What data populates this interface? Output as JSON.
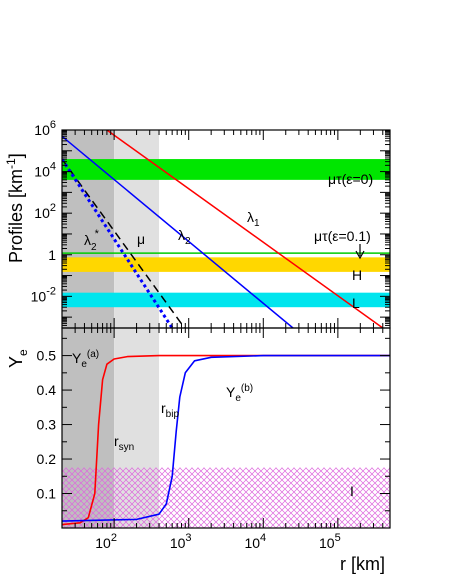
{
  "chart_data": [
    {
      "type": "line",
      "ylabel_main": "Profiles [km",
      "ylabel_sup": "-1",
      "ylabel_end": "]",
      "x_scale": "log",
      "y_scale": "log",
      "xlim": [
        20,
        500000
      ],
      "ylim": [
        0.0003,
        1000000
      ],
      "x_tick_labels": [
        {
          "base": "10",
          "exp": "2",
          "value": 100
        },
        {
          "base": "10",
          "exp": "3",
          "value": 1000
        },
        {
          "base": "10",
          "exp": "4",
          "value": 10000
        },
        {
          "base": "10",
          "exp": "5",
          "value": 100000
        }
      ],
      "y_tick_labels": [
        {
          "base": "10",
          "exp": "6",
          "value": 1000000
        },
        {
          "base": "10",
          "exp": "4",
          "value": 10000
        },
        {
          "base": "10",
          "exp": "2",
          "value": 100
        },
        {
          "base": "1",
          "exp": "",
          "value": 1
        },
        {
          "base": "10",
          "exp": "-2",
          "value": 0.01
        }
      ],
      "shaded_regions": [
        {
          "x_from": 20,
          "x_to": 100,
          "color": "#bfbfbf"
        },
        {
          "x_from": 100,
          "x_to": 400,
          "color": "#e0e0e0"
        }
      ],
      "bands": [
        {
          "label": "μτ(ε=0)",
          "y_from": 4000,
          "y_to": 40000,
          "color": "#00e600"
        },
        {
          "label": "H",
          "y_from": 0.15,
          "y_to": 0.75,
          "color": "#ffd700"
        },
        {
          "label": "L",
          "y_from": 0.003,
          "y_to": 0.015,
          "color": "#00e5ee"
        }
      ],
      "hlines": [
        {
          "label": "μτ(ε=0.1)",
          "y": 1.2,
          "color": "#00cc00"
        }
      ],
      "series": [
        {
          "name": "λ",
          "sub": "1",
          "sup": "",
          "color": "#ff0000",
          "dash": "",
          "points": [
            [
              80,
              1000000
            ],
            [
              400000,
              0.0003
            ]
          ]
        },
        {
          "name": "λ",
          "sub": "2",
          "sup": "",
          "color": "#0000ff",
          "dash": "",
          "points": [
            [
              20,
              500000
            ],
            [
              25000,
              0.0003
            ]
          ]
        },
        {
          "name": "μ",
          "sub": "",
          "sup": "",
          "color": "#000000",
          "dash": "8,5",
          "points": [
            [
              20,
              40000
            ],
            [
              880,
              0.0003
            ]
          ]
        },
        {
          "name": "λ",
          "sub": "2",
          "sup": "*",
          "color": "#0000ff",
          "dash": "3,3",
          "points": [
            [
              20,
              40000
            ],
            [
              600,
              0.0003
            ]
          ]
        }
      ]
    },
    {
      "type": "line",
      "ylabel_main": "Y",
      "ylabel_sub": "e",
      "xlabel": "r [km]",
      "x_scale": "log",
      "xlim": [
        20,
        500000
      ],
      "ylim": [
        0,
        0.58
      ],
      "y_ticks": [
        "0.1",
        "0.2",
        "0.3",
        "0.4",
        "0.5"
      ],
      "shaded_regions": [
        {
          "x_from": 20,
          "x_to": 100,
          "color": "#bfbfbf"
        },
        {
          "x_from": 100,
          "x_to": 400,
          "color": "#e0e0e0"
        }
      ],
      "hatched_band": {
        "label": "I",
        "y_from": 0,
        "y_to": 0.175,
        "color": "#dd66dd"
      },
      "region_labels": [
        {
          "main": "r",
          "sub": "syn"
        },
        {
          "main": "r",
          "sub": "bip"
        }
      ],
      "series": [
        {
          "name": "Y",
          "sub": "e",
          "sup": "(a)",
          "color": "#ff0000",
          "points": [
            [
              20,
              0.01
            ],
            [
              35,
              0.015
            ],
            [
              45,
              0.03
            ],
            [
              55,
              0.1
            ],
            [
              62,
              0.3
            ],
            [
              70,
              0.43
            ],
            [
              80,
              0.475
            ],
            [
              100,
              0.49
            ],
            [
              150,
              0.497
            ],
            [
              400,
              0.5
            ],
            [
              500000,
              0.5
            ]
          ]
        },
        {
          "name": "Y",
          "sub": "e",
          "sup": "(b)",
          "color": "#0000ff",
          "points": [
            [
              20,
              0.02
            ],
            [
              200,
              0.025
            ],
            [
              400,
              0.04
            ],
            [
              500,
              0.07
            ],
            [
              600,
              0.15
            ],
            [
              680,
              0.28
            ],
            [
              760,
              0.38
            ],
            [
              900,
              0.45
            ],
            [
              1200,
              0.485
            ],
            [
              2000,
              0.495
            ],
            [
              10000,
              0.5
            ],
            [
              500000,
              0.5
            ]
          ]
        }
      ]
    }
  ]
}
